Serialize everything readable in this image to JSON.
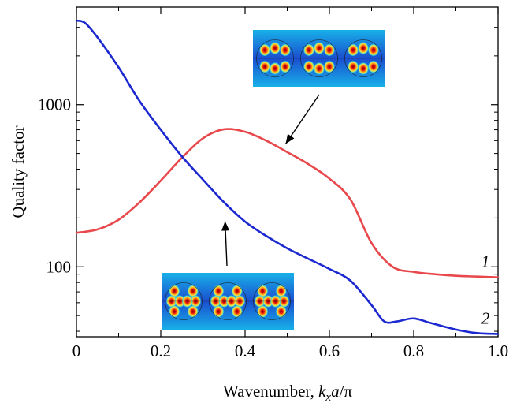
{
  "chart_data": {
    "type": "line",
    "title": "",
    "xlabel": {
      "main": "Wavenumber, ",
      "k": "k",
      "sub": "x",
      "a": "a",
      "rest": "/π"
    },
    "ylabel": "Quality factor",
    "xlim": [
      0,
      1.0
    ],
    "ylim": [
      37,
      4000
    ],
    "y_scale": "log",
    "grid": false,
    "x_ticks": [
      "0",
      "0.2",
      "0.4",
      "0.6",
      "0.8",
      "1.0"
    ],
    "x_tick_values": [
      0,
      0.2,
      0.4,
      0.6,
      0.8,
      1.0
    ],
    "y_ticks": [
      "100",
      "1000"
    ],
    "y_tick_values": [
      100,
      1000
    ],
    "series": [
      {
        "name": "1",
        "color": "#e8474b",
        "x": [
          0,
          0.05,
          0.1,
          0.15,
          0.2,
          0.25,
          0.3,
          0.35,
          0.4,
          0.45,
          0.5,
          0.55,
          0.6,
          0.65,
          0.7,
          0.75,
          0.8,
          0.85,
          0.9,
          0.95,
          1.0
        ],
        "y": [
          162,
          170,
          195,
          250,
          340,
          470,
          620,
          705,
          680,
          600,
          510,
          430,
          350,
          260,
          140,
          100,
          93,
          90,
          88,
          87,
          86
        ]
      },
      {
        "name": "2",
        "color": "#1c28d0",
        "x": [
          0,
          0.02,
          0.05,
          0.1,
          0.15,
          0.2,
          0.25,
          0.3,
          0.35,
          0.4,
          0.45,
          0.5,
          0.55,
          0.6,
          0.65,
          0.7,
          0.73,
          0.76,
          0.8,
          0.84,
          0.9,
          0.95,
          1.0
        ],
        "y": [
          3300,
          3200,
          2600,
          1700,
          1050,
          700,
          480,
          345,
          250,
          190,
          155,
          130,
          112,
          97,
          82,
          58,
          46,
          46,
          48,
          45,
          41,
          39,
          38.5
        ]
      }
    ],
    "insets": [
      {
        "anchor_series": "1",
        "anchor": {
          "x": 0.5,
          "y": 560
        }
      },
      {
        "anchor_series": "2",
        "anchor": {
          "x": 0.36,
          "y": 250
        }
      }
    ],
    "colors": {
      "axes": "#000000",
      "inset_background": "#1e74d8",
      "inset_hot": "#d40f0f",
      "inset_warm": "#ffd11a"
    }
  }
}
